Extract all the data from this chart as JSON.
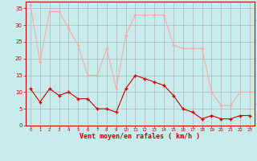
{
  "x": [
    0,
    1,
    2,
    3,
    4,
    5,
    6,
    7,
    8,
    9,
    10,
    11,
    12,
    13,
    14,
    15,
    16,
    17,
    18,
    19,
    20,
    21,
    22,
    23
  ],
  "avg": [
    11,
    7,
    11,
    9,
    10,
    8,
    8,
    5,
    5,
    4,
    11,
    15,
    14,
    13,
    12,
    9,
    5,
    4,
    2,
    3,
    2,
    2,
    3,
    3
  ],
  "gust": [
    36,
    19,
    34,
    34,
    29,
    24,
    15,
    15,
    23,
    11,
    27,
    33,
    33,
    33,
    33,
    24,
    23,
    23,
    23,
    10,
    6,
    6,
    10,
    10
  ],
  "bg_color": "#c8ecec",
  "avg_color": "#cc0000",
  "gust_color": "#ffaaaa",
  "grid_color": "#aaaaaa",
  "xlabel": "Vent moyen/en rafales ( km/h )",
  "ylabel_ticks": [
    0,
    5,
    10,
    15,
    20,
    25,
    30,
    35
  ],
  "ylim": [
    0,
    37
  ],
  "xlim": [
    -0.5,
    23.5
  ],
  "xlabel_color": "#cc0000",
  "tick_color": "#cc0000",
  "spine_color": "#cc0000"
}
